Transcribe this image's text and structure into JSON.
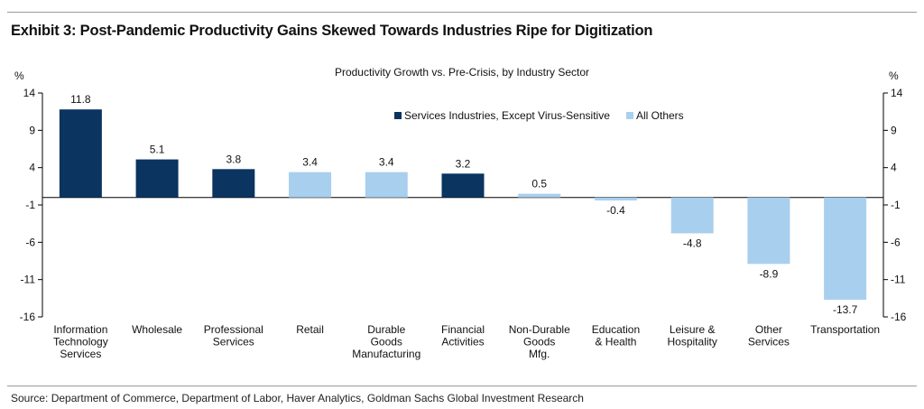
{
  "exhibit_title": "Exhibit 3: Post-Pandemic Productivity Gains Skewed Towards Industries Ripe for Digitization",
  "source": "Source: Department of Commerce, Department of Labor, Haver Analytics, Goldman Sachs Global Investment Research",
  "colors": {
    "services": "#0b3460",
    "others": "#a9cfee"
  },
  "chart_data": {
    "type": "bar",
    "title": "Productivity Growth vs. Pre-Crisis, by Industry Sector",
    "ylabel_left": "%",
    "ylabel_right": "%",
    "ylim": [
      -16,
      14
    ],
    "yticks": [
      14,
      9,
      4,
      -1,
      -6,
      -11,
      -16
    ],
    "legend_position": "top-center",
    "series": [
      {
        "name": "Services Industries, Except Virus-Sensitive",
        "color": "#0b3460"
      },
      {
        "name": "All Others",
        "color": "#a9cfee"
      }
    ],
    "categories": [
      [
        "Information",
        "Technology",
        "Services"
      ],
      [
        "Wholesale"
      ],
      [
        "Professional",
        "Services"
      ],
      [
        "Retail"
      ],
      [
        "Durable",
        "Goods",
        "Manufacturing"
      ],
      [
        "Financial",
        "Activities"
      ],
      [
        "Non-Durable",
        "Goods",
        "Mfg."
      ],
      [
        "Education",
        "& Health"
      ],
      [
        "Leisure &",
        "Hospitality"
      ],
      [
        "Other",
        "Services"
      ],
      [
        "Transportation"
      ]
    ],
    "values": [
      11.8,
      5.1,
      3.8,
      3.4,
      3.4,
      3.2,
      0.5,
      -0.4,
      -4.8,
      -8.9,
      -13.7
    ],
    "value_labels": [
      "11.8",
      "5.1",
      "3.8",
      "3.4",
      "3.4",
      "3.2",
      "0.5",
      "-0.4",
      "-4.8",
      "-8.9",
      "-13.7"
    ],
    "series_index": [
      0,
      0,
      0,
      1,
      1,
      0,
      1,
      1,
      1,
      1,
      1
    ]
  }
}
